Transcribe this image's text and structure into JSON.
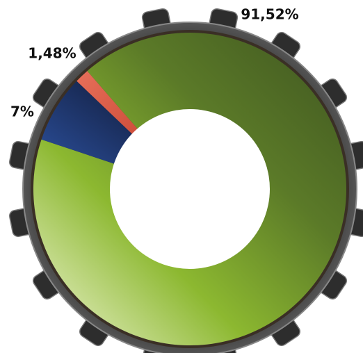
{
  "chart_data": {
    "type": "donut",
    "values": [
      91.52,
      7,
      1.48
    ],
    "value_labels": [
      "91,52%",
      "7%",
      "1,48%"
    ],
    "colors": [
      "#6a8a2a",
      "#1e3570",
      "#d9503a"
    ]
  }
}
